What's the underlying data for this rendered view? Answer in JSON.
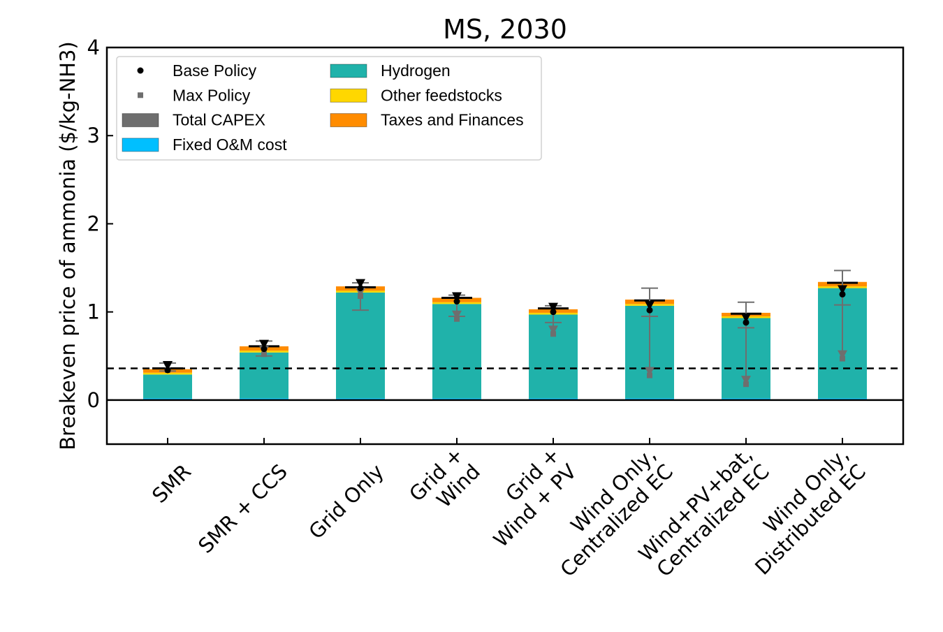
{
  "chart_data": {
    "type": "bar",
    "title": "MS, 2030",
    "xlabel": "",
    "ylabel": "Breakeven price of ammonia ($/kg-NH3)",
    "ylim": [
      -0.5,
      4
    ],
    "yticks": [
      0,
      1,
      2,
      3,
      4
    ],
    "grid": false,
    "legend_position": "upper-left",
    "reference_line": 0.36,
    "categories": [
      [
        "SMR"
      ],
      [
        "SMR + CCS"
      ],
      [
        "Grid Only"
      ],
      [
        "Grid +",
        "Wind"
      ],
      [
        "Grid +",
        "Wind + PV"
      ],
      [
        "Wind Only,",
        "Centralized EC"
      ],
      [
        "Wind+PV+bat,",
        "Centralized EC"
      ],
      [
        "Wind Only,",
        "Distributed EC"
      ]
    ],
    "series": [
      {
        "name": "Total CAPEX",
        "color": "#6e6e6e",
        "values": [
          0.0,
          0.0,
          0.0,
          0.0,
          0.0,
          0.0,
          0.0,
          0.0
        ]
      },
      {
        "name": "Fixed O&M cost",
        "color": "#00bfff",
        "values": [
          0.02,
          0.02,
          0.02,
          0.02,
          0.02,
          0.02,
          0.02,
          0.02
        ]
      },
      {
        "name": "Hydrogen",
        "color": "#20b2aa",
        "values": [
          0.27,
          0.52,
          1.2,
          1.07,
          0.95,
          1.05,
          0.91,
          1.25
        ]
      },
      {
        "name": "Other feedstocks",
        "color": "#ffd700",
        "values": [
          0.02,
          0.02,
          0.02,
          0.02,
          0.02,
          0.02,
          0.02,
          0.02
        ]
      },
      {
        "name": "Taxes and Finances",
        "color": "#ff8c00",
        "values": [
          0.04,
          0.05,
          0.05,
          0.05,
          0.04,
          0.05,
          0.04,
          0.05
        ]
      }
    ],
    "totals": [
      0.36,
      0.61,
      1.28,
      1.16,
      1.04,
      1.13,
      0.98,
      1.33
    ],
    "base_policy": {
      "name": "Base Policy",
      "values": [
        0.34,
        0.58,
        1.27,
        1.12,
        1.0,
        1.02,
        0.88,
        1.2
      ],
      "err_low": [
        0.33,
        0.5,
        1.02,
        0.95,
        0.88,
        0.95,
        0.82,
        1.08
      ],
      "err_high": [
        0.42,
        0.67,
        1.33,
        1.19,
        1.07,
        1.27,
        1.11,
        1.47
      ]
    },
    "max_policy": {
      "name": "Max Policy",
      "values": [
        0.34,
        0.52,
        1.18,
        0.92,
        0.75,
        0.28,
        0.18,
        0.47
      ],
      "bar_values": [
        0.34,
        0.52,
        1.18,
        0.95,
        0.75,
        1.02,
        0.88,
        1.2
      ]
    }
  }
}
